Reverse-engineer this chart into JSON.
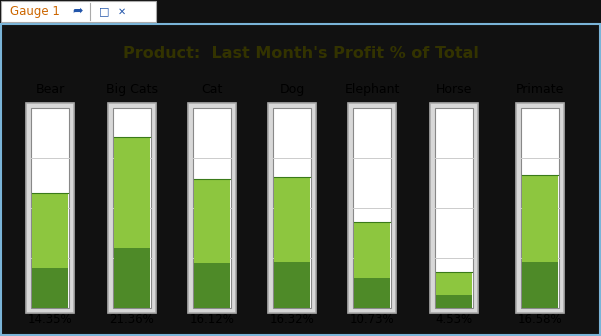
{
  "title": "Product:  Last Month's Profit % of Total",
  "categories": [
    "Bear",
    "Big Cats",
    "Cat",
    "Dog",
    "Elephant",
    "Horse",
    "Primate"
  ],
  "values": [
    14.35,
    21.36,
    16.12,
    16.32,
    10.73,
    4.53,
    16.58
  ],
  "labels": [
    "14.35%",
    "21.36%",
    "16.12%",
    "16.32%",
    "10.73%",
    "4.53%",
    "16.58%"
  ],
  "gauge_max": 25.0,
  "gauge_min": 0.0,
  "n_divisions": 4,
  "fill_color_light": "#8dc63f",
  "fill_color_dark": "#4e8a28",
  "gauge_bg": "#ffffff",
  "gauge_outer_fill": "#d8d8d8",
  "gauge_outer_border": "#aaaaaa",
  "gauge_inner_border": "#888888",
  "grid_color": "#cccccc",
  "title_color": "#333300",
  "title_fontsize": 11.5,
  "label_fontsize": 9,
  "pct_fontsize": 8.5,
  "panel_bg": "#f0f0f0",
  "outer_bg": "#111111",
  "tab_bg": "#ffffff",
  "tab_text": "Gauge 1",
  "tab_text_color": "#cc6600",
  "tab_icon_color": "#2255aa",
  "tab_border_color": "#aaaaaa",
  "panel_border_color": "#7ab4d8"
}
